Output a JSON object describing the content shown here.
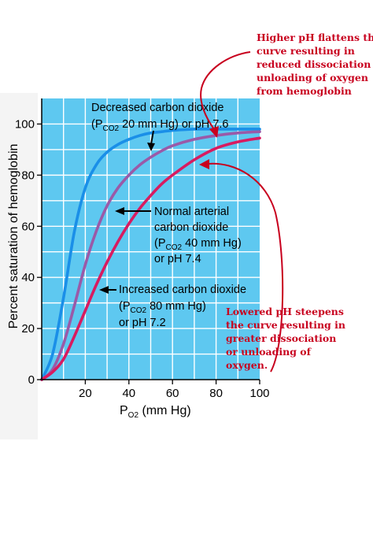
{
  "chart_data": {
    "type": "line",
    "title": "",
    "xlabel": "P",
    "xlabel_sub": "O2",
    "xlabel_unit": " (mm Hg)",
    "ylabel": "Percent saturation of hemoglobin",
    "xlim": [
      0,
      100
    ],
    "ylim": [
      0,
      110
    ],
    "xticks": [
      "20",
      "40",
      "60",
      "80",
      "100"
    ],
    "yticks": [
      "0",
      "20",
      "40",
      "60",
      "80",
      "100"
    ],
    "grid": true,
    "series": [
      {
        "key": "decreased",
        "color": "#1a8fe8",
        "x": [
          0,
          5,
          10,
          15,
          20,
          25,
          30,
          35,
          40,
          45,
          50,
          55,
          60,
          70,
          80,
          90,
          100
        ],
        "y": [
          0,
          10,
          32,
          58,
          75,
          84,
          89,
          92,
          94,
          95.5,
          96.5,
          97,
          97.5,
          98,
          98,
          98,
          98
        ]
      },
      {
        "key": "normal",
        "color": "#9a5aa8",
        "x": [
          0,
          5,
          10,
          15,
          20,
          25,
          30,
          35,
          40,
          45,
          50,
          55,
          60,
          70,
          80,
          90,
          100
        ],
        "y": [
          0,
          4,
          14,
          29,
          45,
          58,
          68,
          75,
          80,
          84,
          87,
          89.5,
          91.5,
          94,
          95.5,
          96.5,
          97
        ]
      },
      {
        "key": "increased",
        "color": "#d81b60",
        "x": [
          0,
          5,
          10,
          15,
          20,
          25,
          30,
          35,
          40,
          45,
          50,
          55,
          60,
          70,
          80,
          90,
          100
        ],
        "y": [
          0,
          3,
          8,
          17,
          27,
          37,
          46,
          54,
          61,
          67,
          72,
          76.5,
          80,
          86,
          90.5,
          93,
          94.5
        ]
      }
    ],
    "annotations": {
      "decreased": {
        "line1": "Decreased carbon dioxide",
        "p": "(P",
        "sub": "CO2",
        "rest": " 20 mm Hg) or pH 7.6"
      },
      "normal": {
        "line1": "Normal arterial",
        "line2": "carbon dioxide",
        "p": "(P",
        "sub": "CO2",
        "rest": " 40 mm Hg)",
        "line4": "or pH 7.4"
      },
      "increased": {
        "line1": "Increased carbon dioxide",
        "p": "(P",
        "sub": "CO2",
        "rest": " 80 mm Hg)",
        "line3": "or pH 7.2"
      }
    }
  },
  "notes": {
    "top": [
      "Higher pH flattens the",
      "curve resulting in",
      "reduced dissociation or",
      "unloading of oxygen",
      "from hemoglobin"
    ],
    "bottom": [
      "Lowered pH steepens",
      "the curve resulting in",
      "greater dissociation",
      "or unloading of",
      "oxygen."
    ],
    "color": "#c8001e"
  },
  "colors": {
    "plot_bg": "#5ec8f0",
    "grid": "#ffffff"
  }
}
